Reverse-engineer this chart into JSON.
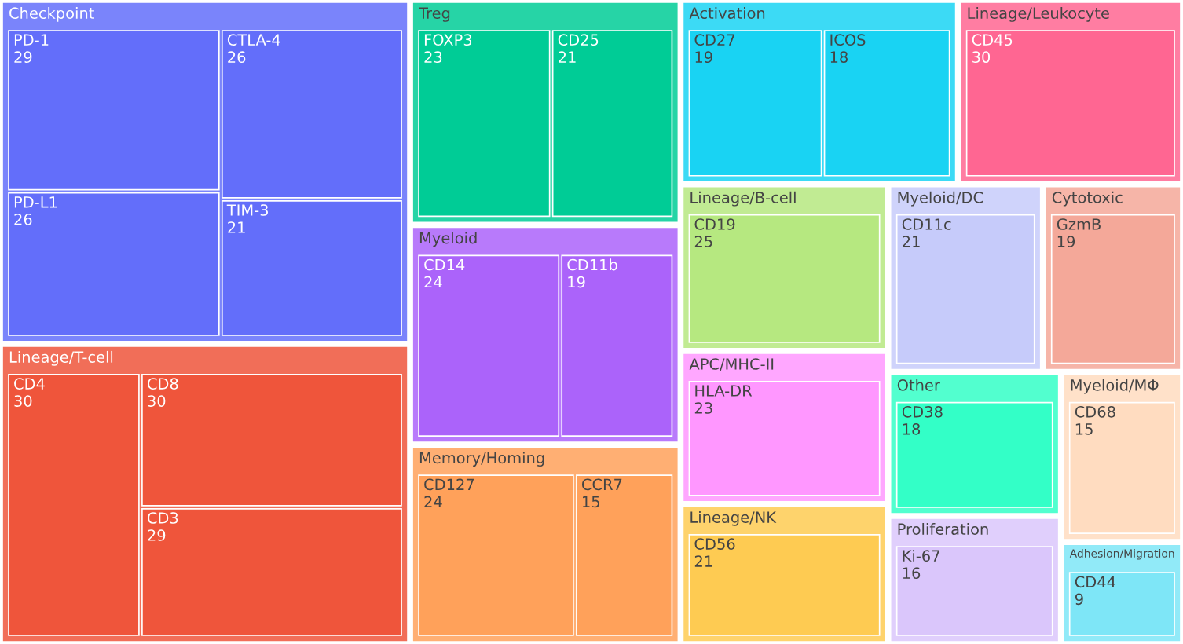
{
  "chart_data": {
    "type": "other",
    "data_labels": true,
    "categories": [
      "PD-1",
      "PD-L1",
      "CTLA-4",
      "TIM-3",
      "CD4",
      "CD8",
      "CD3",
      "FOXP3",
      "CD25",
      "CD14",
      "CD11b",
      "CD127",
      "CCR7",
      "CD27",
      "ICOS",
      "CD45",
      "CD19",
      "HLA-DR",
      "CD56",
      "CD11c",
      "GzmB",
      "CD38",
      "Ki-67",
      "CD68",
      "CD44"
    ],
    "series": [
      {
        "name": "Checkpoint",
        "values": [
          29,
          26,
          26,
          21,
          null,
          null,
          null,
          null,
          null,
          null,
          null,
          null,
          null,
          null,
          null,
          null,
          null,
          null,
          null,
          null,
          null,
          null,
          null,
          null,
          null
        ],
        "color": "#636efa"
      },
      {
        "name": "Lineage/T-cell",
        "values": [
          null,
          null,
          null,
          null,
          30,
          30,
          29,
          null,
          null,
          null,
          null,
          null,
          null,
          null,
          null,
          null,
          null,
          null,
          null,
          null,
          null,
          null,
          null,
          null,
          null
        ],
        "color": "#ef553b"
      },
      {
        "name": "Treg",
        "values": [
          null,
          null,
          null,
          null,
          null,
          null,
          null,
          23,
          21,
          null,
          null,
          null,
          null,
          null,
          null,
          null,
          null,
          null,
          null,
          null,
          null,
          null,
          null,
          null,
          null
        ],
        "color": "#00cc96"
      },
      {
        "name": "Myeloid",
        "values": [
          null,
          null,
          null,
          null,
          null,
          null,
          null,
          null,
          null,
          24,
          19,
          null,
          null,
          null,
          null,
          null,
          null,
          null,
          null,
          null,
          null,
          null,
          null,
          null,
          null
        ],
        "color": "#ab63fa"
      },
      {
        "name": "Memory/Homing",
        "values": [
          null,
          null,
          null,
          null,
          null,
          null,
          null,
          null,
          null,
          null,
          null,
          24,
          15,
          null,
          null,
          null,
          null,
          null,
          null,
          null,
          null,
          null,
          null,
          null,
          null
        ],
        "color": "#ffa15a"
      },
      {
        "name": "Activation",
        "values": [
          null,
          null,
          null,
          null,
          null,
          null,
          null,
          null,
          null,
          null,
          null,
          null,
          null,
          19,
          18,
          null,
          null,
          null,
          null,
          null,
          null,
          null,
          null,
          null,
          null
        ],
        "color": "#19d3f3"
      },
      {
        "name": "Lineage/Leukocyte",
        "values": [
          null,
          null,
          null,
          null,
          null,
          null,
          null,
          null,
          null,
          null,
          null,
          null,
          null,
          null,
          null,
          30,
          null,
          null,
          null,
          null,
          null,
          null,
          null,
          null,
          null
        ],
        "color": "#ff6692"
      },
      {
        "name": "Lineage/B-cell",
        "values": [
          null,
          null,
          null,
          null,
          null,
          null,
          null,
          null,
          null,
          null,
          null,
          null,
          null,
          null,
          null,
          null,
          25,
          null,
          null,
          null,
          null,
          null,
          null,
          null,
          null
        ],
        "color": "#b6e880"
      },
      {
        "name": "APC/MHC-II",
        "values": [
          null,
          null,
          null,
          null,
          null,
          null,
          null,
          null,
          null,
          null,
          null,
          null,
          null,
          null,
          null,
          null,
          null,
          23,
          null,
          null,
          null,
          null,
          null,
          null,
          null
        ],
        "color": "#ff97ff"
      },
      {
        "name": "Lineage/NK",
        "values": [
          null,
          null,
          null,
          null,
          null,
          null,
          null,
          null,
          null,
          null,
          null,
          null,
          null,
          null,
          null,
          null,
          null,
          null,
          21,
          null,
          null,
          null,
          null,
          null,
          null
        ],
        "color": "#fecb52"
      },
      {
        "name": "Myeloid/DC",
        "values": [
          null,
          null,
          null,
          null,
          null,
          null,
          null,
          null,
          null,
          null,
          null,
          null,
          null,
          null,
          null,
          null,
          null,
          null,
          null,
          21,
          null,
          null,
          null,
          null,
          null
        ],
        "color": "#c6cbfa"
      },
      {
        "name": "Cytotoxic",
        "values": [
          null,
          null,
          null,
          null,
          null,
          null,
          null,
          null,
          null,
          null,
          null,
          null,
          null,
          null,
          null,
          null,
          null,
          null,
          null,
          null,
          19,
          null,
          null,
          null,
          null
        ],
        "color": "#f4a899"
      },
      {
        "name": "Other",
        "values": [
          null,
          null,
          null,
          null,
          null,
          null,
          null,
          null,
          null,
          null,
          null,
          null,
          null,
          null,
          null,
          null,
          null,
          null,
          null,
          null,
          null,
          18,
          null,
          null,
          null
        ],
        "color": "#33ffc7"
      },
      {
        "name": "Proliferation",
        "values": [
          null,
          null,
          null,
          null,
          null,
          null,
          null,
          null,
          null,
          null,
          null,
          null,
          null,
          null,
          null,
          null,
          null,
          null,
          null,
          null,
          null,
          null,
          16,
          null,
          null
        ],
        "color": "#dac6fb"
      },
      {
        "name": "Myeloid/MΦ",
        "values": [
          null,
          null,
          null,
          null,
          null,
          null,
          null,
          null,
          null,
          null,
          null,
          null,
          null,
          null,
          null,
          null,
          null,
          null,
          null,
          null,
          null,
          null,
          null,
          15,
          null
        ],
        "color": "#ffdcc0"
      },
      {
        "name": "Adhesion/Migration",
        "values": [
          null,
          null,
          null,
          null,
          null,
          null,
          null,
          null,
          null,
          null,
          null,
          null,
          null,
          null,
          null,
          null,
          null,
          null,
          null,
          null,
          null,
          null,
          null,
          null,
          9
        ],
        "color": "#7ee6f7"
      }
    ]
  }
}
